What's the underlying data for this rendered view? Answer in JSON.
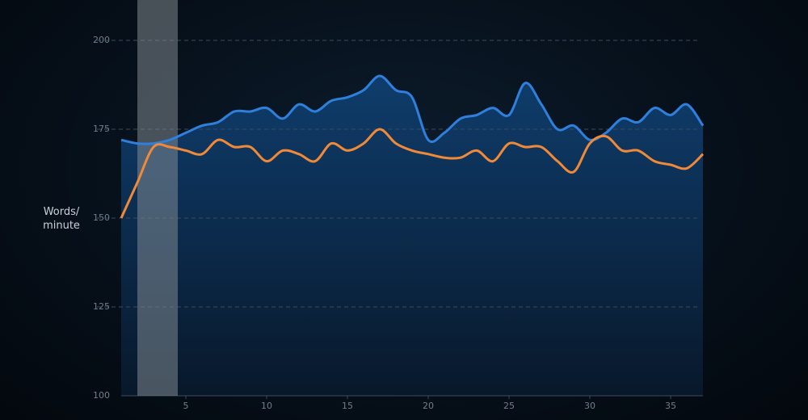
{
  "chart_data": {
    "type": "line",
    "ylabel": "Words/\nminute",
    "x": [
      1,
      2,
      3,
      4,
      5,
      6,
      7,
      8,
      9,
      10,
      11,
      12,
      13,
      14,
      15,
      16,
      17,
      18,
      19,
      20,
      21,
      22,
      23,
      24,
      25,
      26,
      27,
      28,
      29,
      30,
      31,
      32,
      33,
      34,
      35,
      36,
      37
    ],
    "series": [
      {
        "color": "#2f80dc",
        "values": [
          172,
          171,
          171,
          172,
          174,
          176,
          177,
          180,
          180,
          181,
          178,
          182,
          180,
          183,
          184,
          186,
          190,
          186,
          184,
          172,
          174,
          178,
          179,
          181,
          179,
          188,
          182,
          175,
          176,
          172,
          174,
          178,
          177,
          181,
          179,
          182,
          176
        ]
      },
      {
        "color": "#f08a38",
        "values": [
          150,
          160,
          170,
          170,
          169,
          168,
          172,
          170,
          170,
          166,
          169,
          168,
          166,
          171,
          169,
          171,
          175,
          171,
          169,
          168,
          167,
          167,
          169,
          166,
          171,
          170,
          170,
          166,
          163,
          171,
          173,
          169,
          169,
          166,
          165,
          164,
          168
        ]
      }
    ],
    "highlight": [
      2,
      4.5
    ],
    "xlim": [
      1,
      37
    ],
    "xticks": [
      5,
      10,
      15,
      20,
      25,
      30,
      35
    ],
    "ylim": [
      100,
      200
    ],
    "yticks": [
      100,
      125,
      150,
      175,
      200
    ],
    "grid": true
  }
}
